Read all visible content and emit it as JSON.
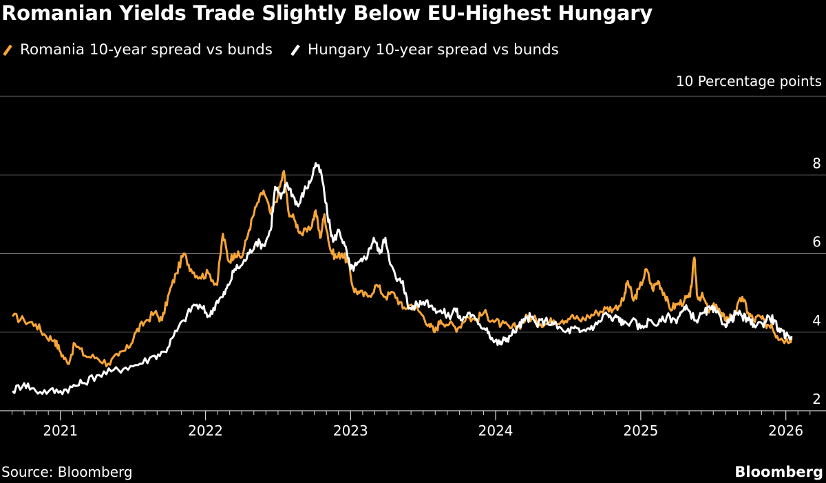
{
  "chart_data": {
    "type": "line",
    "title": "Romanian Yields Trade Slightly Below EU-Highest Hungary",
    "ylabel": "10 Percentage points",
    "ylim": [
      2,
      10
    ],
    "yticks": [
      2,
      4,
      6,
      8
    ],
    "xlim": [
      2020.65,
      2026.22
    ],
    "xticks": [
      {
        "value": 2021,
        "label": "2021"
      },
      {
        "value": 2022,
        "label": "2022"
      },
      {
        "value": 2023,
        "label": "2023"
      },
      {
        "value": 2024,
        "label": "2024"
      },
      {
        "value": 2025,
        "label": "2025"
      },
      {
        "value": 2026,
        "label": "2026"
      }
    ],
    "grid": true,
    "legend_position": "top-left",
    "series": [
      {
        "name": "Romania 10-year spread vs bunds",
        "color": "#f7a536",
        "points": [
          [
            2020.67,
            4.4
          ],
          [
            2020.75,
            4.3
          ],
          [
            2020.83,
            4.2
          ],
          [
            2020.9,
            3.9
          ],
          [
            2020.96,
            3.8
          ],
          [
            2021.0,
            3.5
          ],
          [
            2021.05,
            3.2
          ],
          [
            2021.1,
            3.7
          ],
          [
            2021.17,
            3.4
          ],
          [
            2021.25,
            3.35
          ],
          [
            2021.33,
            3.2
          ],
          [
            2021.4,
            3.4
          ],
          [
            2021.47,
            3.6
          ],
          [
            2021.52,
            4.0
          ],
          [
            2021.58,
            4.25
          ],
          [
            2021.65,
            4.5
          ],
          [
            2021.7,
            4.3
          ],
          [
            2021.75,
            5.0
          ],
          [
            2021.8,
            5.5
          ],
          [
            2021.85,
            6.0
          ],
          [
            2021.9,
            5.6
          ],
          [
            2021.96,
            5.4
          ],
          [
            2022.02,
            5.5
          ],
          [
            2022.08,
            5.2
          ],
          [
            2022.12,
            6.5
          ],
          [
            2022.16,
            5.8
          ],
          [
            2022.2,
            6.0
          ],
          [
            2022.25,
            5.9
          ],
          [
            2022.3,
            6.6
          ],
          [
            2022.35,
            7.2
          ],
          [
            2022.4,
            7.6
          ],
          [
            2022.45,
            7.0
          ],
          [
            2022.5,
            7.5
          ],
          [
            2022.54,
            8.1
          ],
          [
            2022.57,
            7.1
          ],
          [
            2022.62,
            6.8
          ],
          [
            2022.66,
            6.5
          ],
          [
            2022.72,
            6.6
          ],
          [
            2022.76,
            7.1
          ],
          [
            2022.79,
            6.4
          ],
          [
            2022.82,
            7.0
          ],
          [
            2022.86,
            6.1
          ],
          [
            2022.9,
            5.9
          ],
          [
            2022.94,
            6.0
          ],
          [
            2022.98,
            5.8
          ],
          [
            2023.02,
            5.1
          ],
          [
            2023.06,
            5.0
          ],
          [
            2023.12,
            4.9
          ],
          [
            2023.18,
            5.2
          ],
          [
            2023.24,
            4.9
          ],
          [
            2023.3,
            5.0
          ],
          [
            2023.36,
            4.6
          ],
          [
            2023.42,
            4.7
          ],
          [
            2023.48,
            4.5
          ],
          [
            2023.54,
            4.2
          ],
          [
            2023.58,
            4.0
          ],
          [
            2023.62,
            4.3
          ],
          [
            2023.68,
            4.2
          ],
          [
            2023.74,
            4.1
          ],
          [
            2023.8,
            4.4
          ],
          [
            2023.86,
            4.3
          ],
          [
            2023.92,
            4.5
          ],
          [
            2023.98,
            4.3
          ],
          [
            2024.04,
            4.2
          ],
          [
            2024.1,
            4.1
          ],
          [
            2024.16,
            4.15
          ],
          [
            2024.22,
            4.4
          ],
          [
            2024.28,
            4.3
          ],
          [
            2024.34,
            4.2
          ],
          [
            2024.4,
            4.3
          ],
          [
            2024.46,
            4.3
          ],
          [
            2024.52,
            4.4
          ],
          [
            2024.58,
            4.3
          ],
          [
            2024.64,
            4.4
          ],
          [
            2024.7,
            4.5
          ],
          [
            2024.76,
            4.6
          ],
          [
            2024.82,
            4.6
          ],
          [
            2024.88,
            4.8
          ],
          [
            2024.91,
            5.3
          ],
          [
            2024.95,
            4.8
          ],
          [
            2024.99,
            5.1
          ],
          [
            2025.04,
            5.6
          ],
          [
            2025.08,
            5.1
          ],
          [
            2025.12,
            5.3
          ],
          [
            2025.16,
            5.0
          ],
          [
            2025.2,
            4.6
          ],
          [
            2025.25,
            4.7
          ],
          [
            2025.3,
            4.8
          ],
          [
            2025.34,
            4.9
          ],
          [
            2025.37,
            5.9
          ],
          [
            2025.39,
            4.9
          ],
          [
            2025.43,
            4.9
          ],
          [
            2025.47,
            4.5
          ],
          [
            2025.52,
            4.7
          ],
          [
            2025.56,
            4.4
          ],
          [
            2025.6,
            4.35
          ],
          [
            2025.65,
            4.5
          ],
          [
            2025.7,
            4.9
          ],
          [
            2025.74,
            4.5
          ],
          [
            2025.78,
            4.3
          ],
          [
            2025.82,
            4.4
          ],
          [
            2025.86,
            4.2
          ],
          [
            2025.9,
            4.2
          ],
          [
            2025.94,
            3.9
          ],
          [
            2026.0,
            3.8
          ],
          [
            2026.04,
            3.85
          ]
        ]
      },
      {
        "name": "Hungary 10-year spread vs bunds",
        "color": "#ffffff",
        "points": [
          [
            2020.67,
            2.5
          ],
          [
            2020.75,
            2.7
          ],
          [
            2020.83,
            2.5
          ],
          [
            2020.92,
            2.5
          ],
          [
            2021.0,
            2.5
          ],
          [
            2021.08,
            2.6
          ],
          [
            2021.15,
            2.7
          ],
          [
            2021.25,
            2.9
          ],
          [
            2021.35,
            3.0
          ],
          [
            2021.45,
            3.1
          ],
          [
            2021.55,
            3.2
          ],
          [
            2021.65,
            3.4
          ],
          [
            2021.72,
            3.5
          ],
          [
            2021.78,
            3.9
          ],
          [
            2021.85,
            4.3
          ],
          [
            2021.92,
            4.7
          ],
          [
            2021.98,
            4.6
          ],
          [
            2022.03,
            4.4
          ],
          [
            2022.08,
            4.8
          ],
          [
            2022.12,
            4.9
          ],
          [
            2022.16,
            5.2
          ],
          [
            2022.2,
            5.6
          ],
          [
            2022.25,
            5.7
          ],
          [
            2022.3,
            6.0
          ],
          [
            2022.35,
            6.3
          ],
          [
            2022.4,
            6.2
          ],
          [
            2022.45,
            6.6
          ],
          [
            2022.48,
            7.7
          ],
          [
            2022.52,
            7.4
          ],
          [
            2022.56,
            7.8
          ],
          [
            2022.6,
            7.5
          ],
          [
            2022.64,
            7.2
          ],
          [
            2022.68,
            7.6
          ],
          [
            2022.72,
            7.8
          ],
          [
            2022.76,
            8.3
          ],
          [
            2022.8,
            8.0
          ],
          [
            2022.84,
            7.0
          ],
          [
            2022.88,
            6.3
          ],
          [
            2022.92,
            6.6
          ],
          [
            2022.96,
            6.2
          ],
          [
            2023.0,
            5.6
          ],
          [
            2023.04,
            5.7
          ],
          [
            2023.08,
            5.8
          ],
          [
            2023.12,
            6.0
          ],
          [
            2023.16,
            6.4
          ],
          [
            2023.2,
            6.0
          ],
          [
            2023.24,
            6.4
          ],
          [
            2023.28,
            5.7
          ],
          [
            2023.32,
            5.3
          ],
          [
            2023.36,
            5.3
          ],
          [
            2023.4,
            4.6
          ],
          [
            2023.46,
            4.7
          ],
          [
            2023.52,
            4.8
          ],
          [
            2023.58,
            4.6
          ],
          [
            2023.64,
            4.5
          ],
          [
            2023.68,
            4.4
          ],
          [
            2023.72,
            4.6
          ],
          [
            2023.76,
            4.3
          ],
          [
            2023.82,
            4.5
          ],
          [
            2023.88,
            4.2
          ],
          [
            2023.94,
            4.1
          ],
          [
            2023.98,
            3.8
          ],
          [
            2024.03,
            3.7
          ],
          [
            2024.06,
            3.8
          ],
          [
            2024.1,
            3.9
          ],
          [
            2024.16,
            4.15
          ],
          [
            2024.2,
            4.3
          ],
          [
            2024.24,
            4.4
          ],
          [
            2024.28,
            4.2
          ],
          [
            2024.34,
            4.3
          ],
          [
            2024.4,
            4.2
          ],
          [
            2024.48,
            4.0
          ],
          [
            2024.54,
            4.1
          ],
          [
            2024.58,
            4.0
          ],
          [
            2024.64,
            4.1
          ],
          [
            2024.7,
            4.2
          ],
          [
            2024.76,
            4.5
          ],
          [
            2024.8,
            4.3
          ],
          [
            2024.84,
            4.4
          ],
          [
            2024.88,
            4.2
          ],
          [
            2024.94,
            4.3
          ],
          [
            2025.0,
            4.1
          ],
          [
            2025.06,
            4.3
          ],
          [
            2025.12,
            4.2
          ],
          [
            2025.18,
            4.4
          ],
          [
            2025.24,
            4.3
          ],
          [
            2025.28,
            4.5
          ],
          [
            2025.32,
            4.6
          ],
          [
            2025.38,
            4.3
          ],
          [
            2025.44,
            4.5
          ],
          [
            2025.48,
            4.6
          ],
          [
            2025.52,
            4.5
          ],
          [
            2025.58,
            4.2
          ],
          [
            2025.62,
            4.3
          ],
          [
            2025.66,
            4.5
          ],
          [
            2025.7,
            4.4
          ],
          [
            2025.74,
            4.3
          ],
          [
            2025.78,
            4.2
          ],
          [
            2025.84,
            4.2
          ],
          [
            2025.88,
            4.4
          ],
          [
            2025.92,
            4.3
          ],
          [
            2025.96,
            4.0
          ],
          [
            2026.0,
            3.9
          ],
          [
            2026.04,
            3.9
          ]
        ]
      }
    ],
    "source": "Source: Bloomberg",
    "brand": "Bloomberg"
  }
}
